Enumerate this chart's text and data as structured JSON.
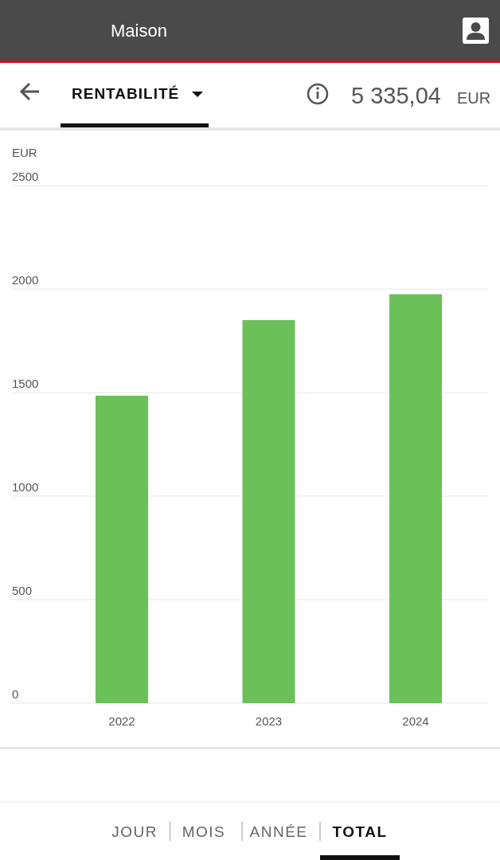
{
  "chart_data": {
    "type": "bar",
    "title": "RENTABILITÉ",
    "ylabel": "EUR",
    "categories": [
      "2022",
      "2023",
      "2024"
    ],
    "values": [
      1485,
      1850,
      1975
    ],
    "color": "#6cc05a",
    "ylim": [
      0,
      2500
    ],
    "yticks": [
      0,
      500,
      1000,
      1500,
      2000,
      2500
    ],
    "grid": "y",
    "annotations": [
      "Maison",
      "5 335,04",
      "EUR",
      "JOUR",
      "MOIS",
      "ANNÉE",
      "TOTAL"
    ]
  }
}
